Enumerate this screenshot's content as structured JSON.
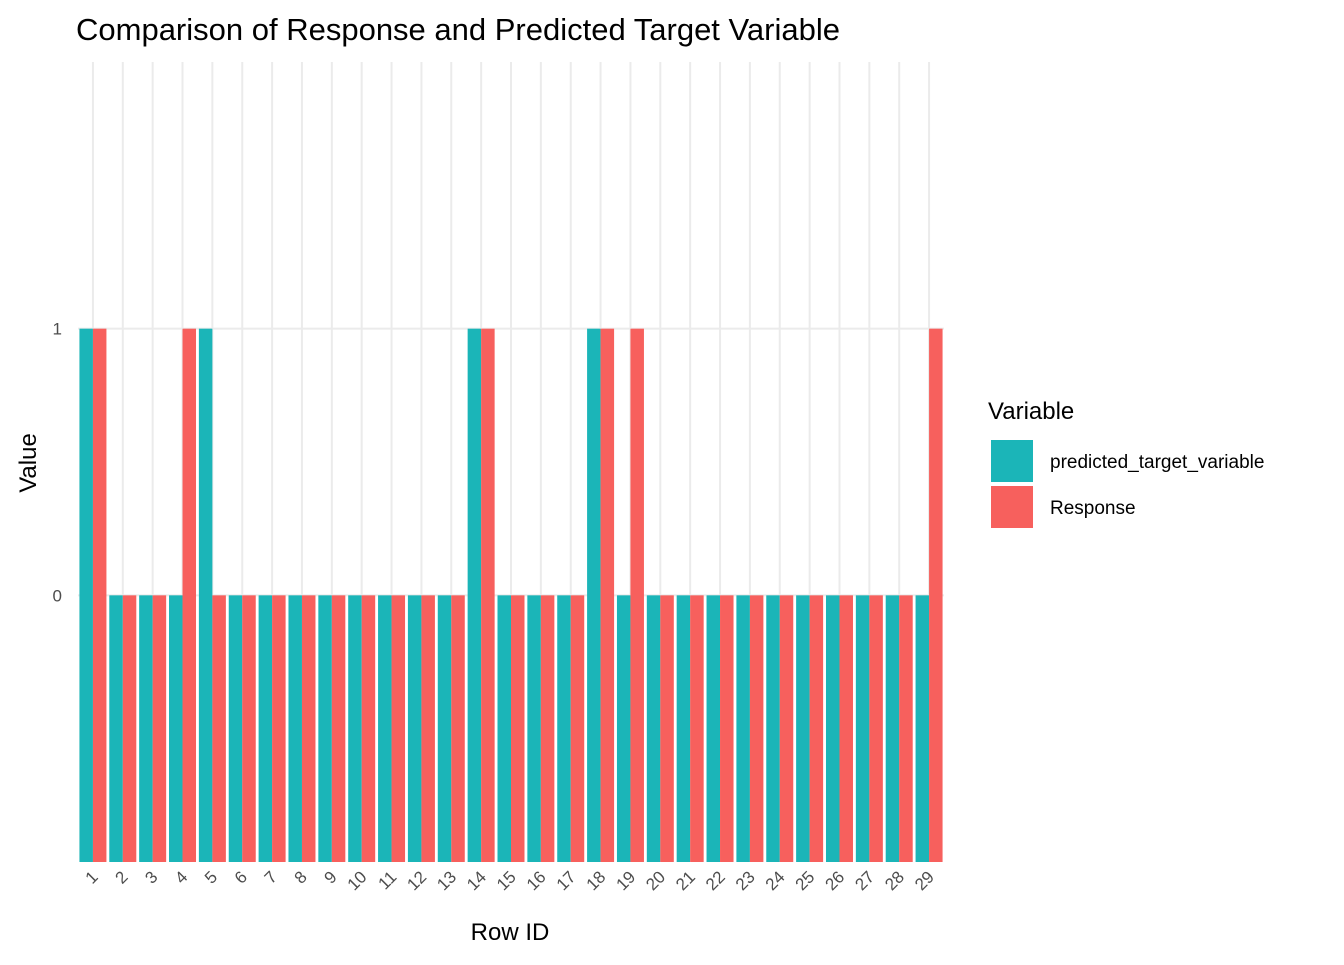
{
  "chart_data": {
    "type": "bar",
    "title": "Comparison of Response and Predicted Target Variable",
    "xlabel": "Row ID",
    "ylabel": "Value",
    "categories": [
      "1",
      "2",
      "3",
      "4",
      "5",
      "6",
      "7",
      "8",
      "9",
      "10",
      "11",
      "12",
      "13",
      "14",
      "15",
      "16",
      "17",
      "18",
      "19",
      "20",
      "21",
      "22",
      "23",
      "24",
      "25",
      "26",
      "27",
      "28",
      "29"
    ],
    "y_tick_labels": [
      "0",
      "1"
    ],
    "y_tick_values": [
      0,
      1
    ],
    "ylim": [
      -1,
      2
    ],
    "grid": true,
    "legend": {
      "title": "Variable",
      "placement": "right"
    },
    "series": [
      {
        "name": "predicted_target_variable",
        "color": "#1BB5B8",
        "values": [
          1,
          0,
          0,
          0,
          1,
          0,
          0,
          0,
          0,
          0,
          0,
          0,
          0,
          1,
          0,
          0,
          0,
          1,
          0,
          0,
          0,
          0,
          0,
          0,
          0,
          0,
          0,
          0,
          0
        ]
      },
      {
        "name": "Response",
        "color": "#F7605D",
        "values": [
          1,
          0,
          0,
          1,
          0,
          0,
          0,
          0,
          0,
          0,
          0,
          0,
          0,
          1,
          0,
          0,
          0,
          1,
          1,
          0,
          0,
          0,
          0,
          0,
          0,
          0,
          0,
          0,
          1
        ]
      }
    ]
  }
}
